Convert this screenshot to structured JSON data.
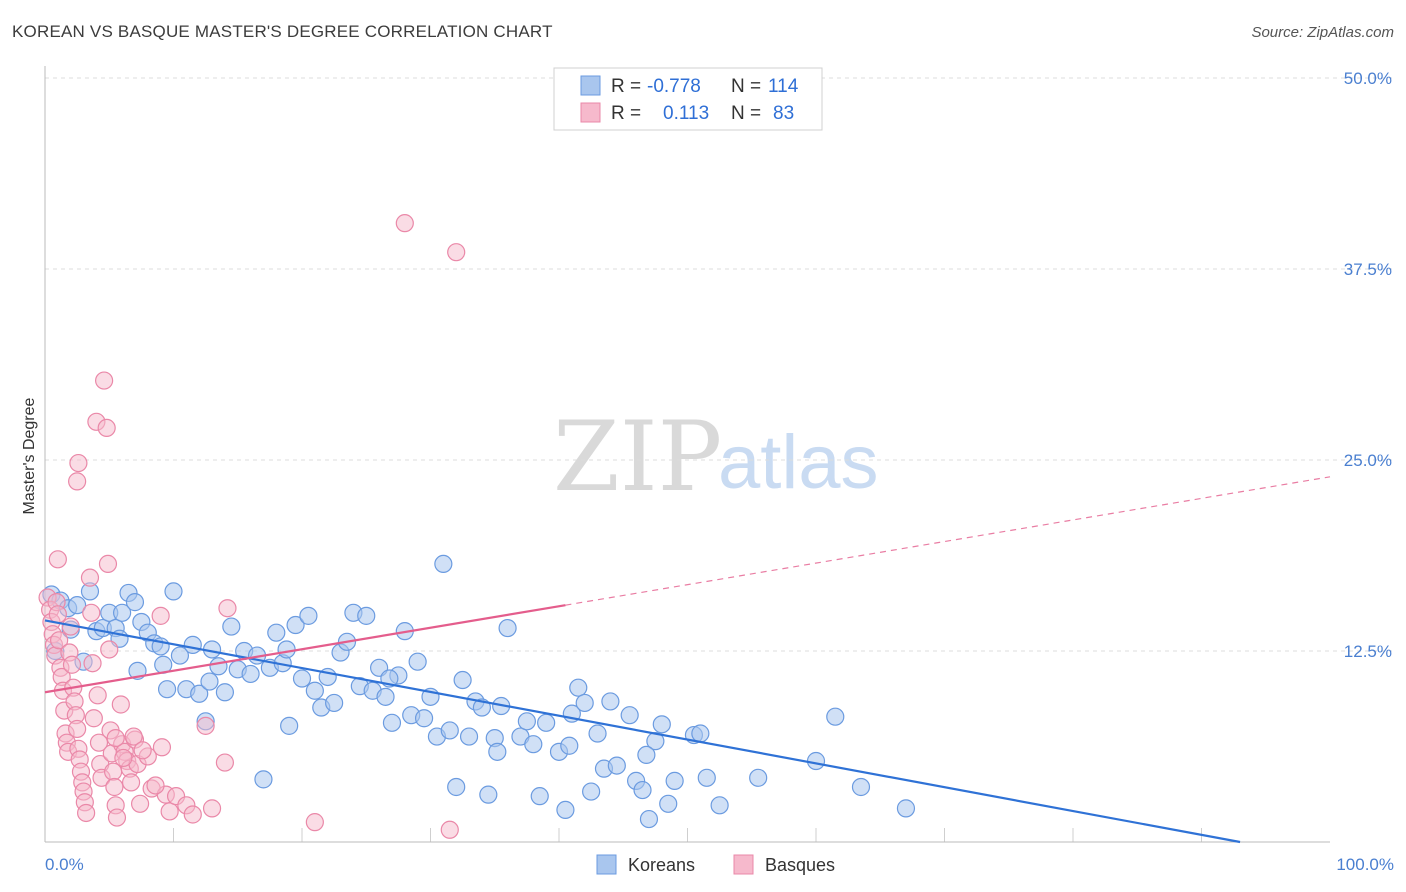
{
  "title": "KOREAN VS BASQUE MASTER'S DEGREE CORRELATION CHART",
  "source": "Source: ZipAtlas.com",
  "watermark": {
    "zip": "ZIP",
    "atlas": "atlas"
  },
  "colors": {
    "korean_fill": "#a9c6ee",
    "korean_stroke": "#6b9be0",
    "korean_line": "#2f72d6",
    "basque_fill": "#f6b9cc",
    "basque_stroke": "#ea88a8",
    "basque_line": "#e45d8c",
    "grid": "#dcdcdc",
    "tick": "#4a7fd0"
  },
  "legend": {
    "rows": [
      {
        "r_label": "R =",
        "r_value": "-0.778",
        "n_label": "N =",
        "n_value": "114"
      },
      {
        "r_label": "R =",
        "r_value": "0.113",
        "n_label": "N =",
        "n_value": "83"
      }
    ]
  },
  "bottom_legend": [
    "Koreans",
    "Basques"
  ],
  "chart_data": {
    "type": "scatter",
    "title": "KOREAN VS BASQUE MASTER'S DEGREE CORRELATION CHART",
    "xlabel": "",
    "ylabel": "Master's Degree",
    "xlim": [
      0,
      100
    ],
    "ylim": [
      0,
      50
    ],
    "x_tick_labels": [
      "0.0%",
      "100.0%"
    ],
    "y_ticks": [
      12.5,
      25.0,
      37.5,
      50.0
    ],
    "y_tick_labels": [
      "12.5%",
      "25.0%",
      "37.5%",
      "50.0%"
    ],
    "grid": true,
    "legend_position": "top-center",
    "series": [
      {
        "name": "Koreans",
        "r": -0.778,
        "n": 114,
        "trend": {
          "x": [
            0,
            93
          ],
          "y": [
            14.5,
            0
          ]
        },
        "points": [
          [
            0.5,
            16.2
          ],
          [
            1.2,
            15.8
          ],
          [
            1.8,
            15.3
          ],
          [
            2.5,
            15.5
          ],
          [
            3.5,
            16.4
          ],
          [
            4.0,
            13.8
          ],
          [
            4.5,
            14.0
          ],
          [
            5.0,
            15.0
          ],
          [
            5.5,
            14.0
          ],
          [
            6.0,
            15.0
          ],
          [
            6.5,
            16.3
          ],
          [
            7.0,
            15.7
          ],
          [
            7.5,
            14.4
          ],
          [
            8.0,
            13.7
          ],
          [
            8.5,
            13.0
          ],
          [
            9.0,
            12.8
          ],
          [
            9.5,
            10.0
          ],
          [
            10.0,
            16.4
          ],
          [
            10.5,
            12.2
          ],
          [
            11.0,
            10.0
          ],
          [
            11.5,
            12.9
          ],
          [
            12.0,
            9.7
          ],
          [
            12.5,
            7.9
          ],
          [
            13.0,
            12.6
          ],
          [
            13.5,
            11.5
          ],
          [
            14.0,
            9.8
          ],
          [
            14.5,
            14.1
          ],
          [
            15.0,
            11.3
          ],
          [
            15.5,
            12.5
          ],
          [
            16.0,
            11.0
          ],
          [
            16.5,
            12.2
          ],
          [
            17.0,
            4.1
          ],
          [
            17.5,
            11.4
          ],
          [
            18.0,
            13.7
          ],
          [
            18.5,
            11.7
          ],
          [
            19.0,
            7.6
          ],
          [
            19.5,
            14.2
          ],
          [
            20.0,
            10.7
          ],
          [
            20.5,
            14.8
          ],
          [
            21.0,
            9.9
          ],
          [
            21.5,
            8.8
          ],
          [
            22.0,
            10.8
          ],
          [
            22.5,
            9.1
          ],
          [
            23.0,
            12.4
          ],
          [
            23.5,
            13.1
          ],
          [
            24.0,
            15.0
          ],
          [
            24.5,
            10.2
          ],
          [
            25.0,
            14.8
          ],
          [
            25.5,
            9.9
          ],
          [
            26.0,
            11.4
          ],
          [
            26.5,
            9.5
          ],
          [
            27.0,
            7.8
          ],
          [
            27.5,
            10.9
          ],
          [
            28.0,
            13.8
          ],
          [
            28.5,
            8.3
          ],
          [
            29.0,
            11.8
          ],
          [
            29.5,
            8.1
          ],
          [
            30.0,
            9.5
          ],
          [
            30.5,
            6.9
          ],
          [
            31.0,
            18.2
          ],
          [
            31.5,
            7.3
          ],
          [
            32.0,
            3.6
          ],
          [
            32.5,
            10.6
          ],
          [
            33.0,
            6.9
          ],
          [
            33.5,
            9.2
          ],
          [
            34.0,
            8.8
          ],
          [
            34.5,
            3.1
          ],
          [
            35.0,
            6.8
          ],
          [
            35.5,
            8.9
          ],
          [
            36.0,
            14.0
          ],
          [
            37.0,
            6.9
          ],
          [
            37.5,
            7.9
          ],
          [
            38.0,
            6.4
          ],
          [
            38.5,
            3.0
          ],
          [
            39.0,
            7.8
          ],
          [
            40.0,
            5.9
          ],
          [
            40.5,
            2.1
          ],
          [
            41.0,
            8.4
          ],
          [
            41.5,
            10.1
          ],
          [
            42.0,
            9.1
          ],
          [
            42.5,
            3.3
          ],
          [
            43.0,
            7.1
          ],
          [
            43.5,
            4.8
          ],
          [
            44.0,
            9.2
          ],
          [
            44.5,
            5.0
          ],
          [
            45.5,
            8.3
          ],
          [
            46.0,
            4.0
          ],
          [
            46.5,
            3.4
          ],
          [
            47.0,
            1.5
          ],
          [
            47.5,
            6.6
          ],
          [
            48.0,
            7.7
          ],
          [
            48.5,
            2.5
          ],
          [
            49.0,
            4.0
          ],
          [
            50.5,
            7.0
          ],
          [
            51.0,
            7.1
          ],
          [
            51.5,
            4.2
          ],
          [
            52.5,
            2.4
          ],
          [
            55.5,
            4.2
          ],
          [
            60.0,
            5.3
          ],
          [
            61.5,
            8.2
          ],
          [
            63.5,
            3.6
          ],
          [
            67.0,
            2.2
          ],
          [
            0.8,
            12.5
          ],
          [
            2.0,
            13.9
          ],
          [
            3.0,
            11.8
          ],
          [
            5.8,
            13.3
          ],
          [
            7.2,
            11.2
          ],
          [
            9.2,
            11.6
          ],
          [
            12.8,
            10.5
          ],
          [
            18.8,
            12.6
          ],
          [
            26.8,
            10.7
          ],
          [
            35.2,
            5.9
          ],
          [
            40.8,
            6.3
          ],
          [
            46.8,
            5.7
          ]
        ]
      },
      {
        "name": "Basques",
        "r": 0.113,
        "n": 83,
        "trend": {
          "x": [
            0,
            40.5
          ],
          "y": [
            9.8,
            15.5
          ],
          "dashed_to": {
            "x": 100,
            "y": 23.9
          }
        },
        "points": [
          [
            0.2,
            16.0
          ],
          [
            0.4,
            15.2
          ],
          [
            0.5,
            14.4
          ],
          [
            0.6,
            13.6
          ],
          [
            0.7,
            12.9
          ],
          [
            0.8,
            12.2
          ],
          [
            0.9,
            15.7
          ],
          [
            1.0,
            14.9
          ],
          [
            1.1,
            13.2
          ],
          [
            1.2,
            11.4
          ],
          [
            1.3,
            10.8
          ],
          [
            1.4,
            9.9
          ],
          [
            1.5,
            8.6
          ],
          [
            1.6,
            7.1
          ],
          [
            1.7,
            6.5
          ],
          [
            1.8,
            5.9
          ],
          [
            1.9,
            12.4
          ],
          [
            2.0,
            14.1
          ],
          [
            2.1,
            11.6
          ],
          [
            2.2,
            10.1
          ],
          [
            2.3,
            9.2
          ],
          [
            2.4,
            8.3
          ],
          [
            2.5,
            7.4
          ],
          [
            2.6,
            6.1
          ],
          [
            2.7,
            5.4
          ],
          [
            2.8,
            4.6
          ],
          [
            2.9,
            3.9
          ],
          [
            3.0,
            3.3
          ],
          [
            3.1,
            2.6
          ],
          [
            3.2,
            1.9
          ],
          [
            1.0,
            18.5
          ],
          [
            2.6,
            24.8
          ],
          [
            2.5,
            23.6
          ],
          [
            3.5,
            17.3
          ],
          [
            3.6,
            15.0
          ],
          [
            3.7,
            11.7
          ],
          [
            3.8,
            8.1
          ],
          [
            4.0,
            27.5
          ],
          [
            4.1,
            9.6
          ],
          [
            4.2,
            6.5
          ],
          [
            4.3,
            5.1
          ],
          [
            4.4,
            4.2
          ],
          [
            4.6,
            30.2
          ],
          [
            4.8,
            27.1
          ],
          [
            4.9,
            18.2
          ],
          [
            5.0,
            12.6
          ],
          [
            5.1,
            7.3
          ],
          [
            5.2,
            5.8
          ],
          [
            5.3,
            4.6
          ],
          [
            5.4,
            3.6
          ],
          [
            5.5,
            2.4
          ],
          [
            5.6,
            1.6
          ],
          [
            5.9,
            9.0
          ],
          [
            6.0,
            6.4
          ],
          [
            6.2,
            5.9
          ],
          [
            6.4,
            5.3
          ],
          [
            6.6,
            4.8
          ],
          [
            6.7,
            3.9
          ],
          [
            7.0,
            6.7
          ],
          [
            7.2,
            5.1
          ],
          [
            7.4,
            2.5
          ],
          [
            8.0,
            5.6
          ],
          [
            8.3,
            3.5
          ],
          [
            9.0,
            14.8
          ],
          [
            9.1,
            6.2
          ],
          [
            9.4,
            3.1
          ],
          [
            9.7,
            2.0
          ],
          [
            10.2,
            3.0
          ],
          [
            11.0,
            2.4
          ],
          [
            11.5,
            1.8
          ],
          [
            12.5,
            7.6
          ],
          [
            13.0,
            2.2
          ],
          [
            14.0,
            5.2
          ],
          [
            14.2,
            15.3
          ],
          [
            21.0,
            1.3
          ],
          [
            28.0,
            40.5
          ],
          [
            32.0,
            38.6
          ],
          [
            31.5,
            0.8
          ],
          [
            5.5,
            6.8
          ],
          [
            6.1,
            5.5
          ],
          [
            6.9,
            6.9
          ],
          [
            7.6,
            6.0
          ],
          [
            8.6,
            3.7
          ]
        ]
      }
    ]
  }
}
